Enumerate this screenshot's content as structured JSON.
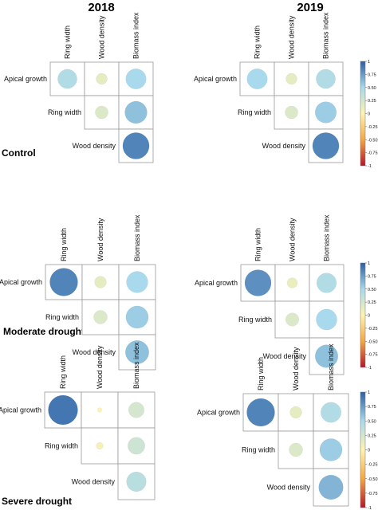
{
  "years": [
    "2018",
    "2019"
  ],
  "conditions": [
    "Control",
    "Moderate drought",
    "Severe drought"
  ],
  "row_labels": [
    "Apical growth",
    "Ring width",
    "Wood density"
  ],
  "col_labels": [
    "Ring width",
    "Wood density",
    "Biomass index"
  ],
  "colorbar_ticks": [
    "1",
    "0.75",
    "0.50",
    "0.25",
    "0",
    "-0.25",
    "-0.50",
    "-0.75",
    "-1"
  ],
  "colors": {
    "scale_negative": "#b2182b",
    "scale_mid_low": "#f4a742",
    "scale_zero": "#fff4b0",
    "scale_mid_high": "#a8d9ec",
    "scale_positive": "#2b5fa3",
    "cell_border": "#9a9a9a"
  },
  "chart_data": [
    {
      "type": "heatmap",
      "panel": "Control 2018",
      "year": "2018",
      "condition": "Control",
      "rows": [
        "Apical growth",
        "Ring width",
        "Wood density"
      ],
      "columns": [
        "Ring width",
        "Wood density",
        "Biomass index"
      ],
      "values": [
        [
          0.45,
          0.15,
          0.5
        ],
        [
          null,
          0.2,
          0.6
        ],
        [
          null,
          null,
          0.85
        ]
      ],
      "value_range": [
        -1,
        1
      ]
    },
    {
      "type": "heatmap",
      "panel": "Control 2019",
      "year": "2019",
      "condition": "Control",
      "rows": [
        "Apical growth",
        "Ring width",
        "Wood density"
      ],
      "columns": [
        "Ring width",
        "Wood density",
        "Biomass index"
      ],
      "values": [
        [
          0.5,
          0.15,
          0.45
        ],
        [
          null,
          0.2,
          0.55
        ],
        [
          null,
          null,
          0.85
        ]
      ],
      "value_range": [
        -1,
        1
      ]
    },
    {
      "type": "heatmap",
      "panel": "Moderate drought 2018",
      "year": "2018",
      "condition": "Moderate drought",
      "rows": [
        "Apical growth",
        "Ring width",
        "Wood density"
      ],
      "columns": [
        "Ring width",
        "Wood density",
        "Biomass index"
      ],
      "values": [
        [
          0.85,
          0.15,
          0.5
        ],
        [
          null,
          0.2,
          0.55
        ],
        [
          null,
          null,
          0.6
        ]
      ],
      "value_range": [
        -1,
        1
      ]
    },
    {
      "type": "heatmap",
      "panel": "Moderate drought 2019",
      "year": "2019",
      "condition": "Moderate drought",
      "rows": [
        "Apical growth",
        "Ring width",
        "Wood density"
      ],
      "columns": [
        "Ring width",
        "Wood density",
        "Biomass index"
      ],
      "values": [
        [
          0.8,
          0.12,
          0.45
        ],
        [
          null,
          0.2,
          0.5
        ],
        [
          null,
          null,
          0.6
        ]
      ],
      "value_range": [
        -1,
        1
      ]
    },
    {
      "type": "heatmap",
      "panel": "Severe drought 2018",
      "year": "2018",
      "condition": "Severe drought",
      "rows": [
        "Apical growth",
        "Ring width",
        "Wood density"
      ],
      "columns": [
        "Ring width",
        "Wood density",
        "Biomass index"
      ],
      "values": [
        [
          0.9,
          0.02,
          0.25
        ],
        [
          null,
          0.05,
          0.3
        ],
        [
          null,
          null,
          0.4
        ]
      ],
      "value_range": [
        -1,
        1
      ]
    },
    {
      "type": "heatmap",
      "panel": "Severe drought 2019",
      "year": "2019",
      "condition": "Severe drought",
      "rows": [
        "Apical growth",
        "Ring width",
        "Wood density"
      ],
      "columns": [
        "Ring width",
        "Wood density",
        "Biomass index"
      ],
      "values": [
        [
          0.85,
          0.15,
          0.45
        ],
        [
          null,
          0.2,
          0.55
        ],
        [
          null,
          null,
          0.65
        ]
      ],
      "value_range": [
        -1,
        1
      ]
    }
  ]
}
